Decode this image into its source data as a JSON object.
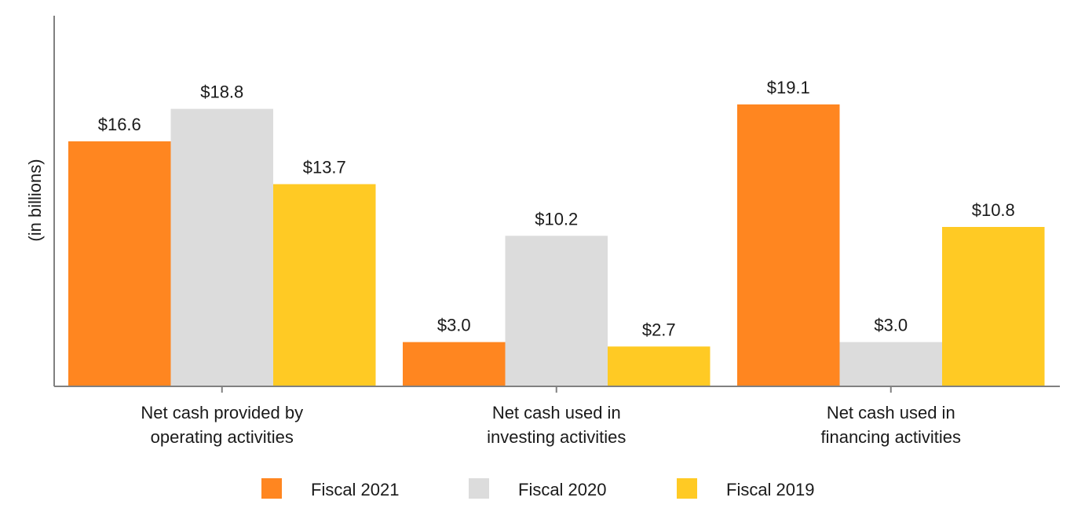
{
  "chart_data": {
    "type": "bar",
    "title": "",
    "xlabel": "",
    "ylabel": "(in billions)",
    "ylim": [
      0,
      19.1
    ],
    "grid": false,
    "legend_position": "bottom",
    "categories": [
      [
        "Net cash provided by",
        "operating activities"
      ],
      [
        "Net cash used in",
        "investing activities"
      ],
      [
        "Net cash used in",
        "financing activities"
      ]
    ],
    "series": [
      {
        "name": "Fiscal 2021",
        "color": "#FF8620",
        "values": [
          16.6,
          3.0,
          19.1
        ],
        "labels": [
          "$16.6",
          "$3.0",
          "$19.1"
        ]
      },
      {
        "name": "Fiscal 2020",
        "color": "#DCDCDC",
        "values": [
          18.8,
          10.2,
          3.0
        ],
        "labels": [
          "$18.8",
          "$10.2",
          "$3.0"
        ]
      },
      {
        "name": "Fiscal 2019",
        "color": "#FFCA24",
        "values": [
          13.7,
          2.7,
          10.8
        ],
        "labels": [
          "$13.7",
          "$2.7",
          "$10.8"
        ]
      }
    ]
  },
  "axis_color": "#808080"
}
